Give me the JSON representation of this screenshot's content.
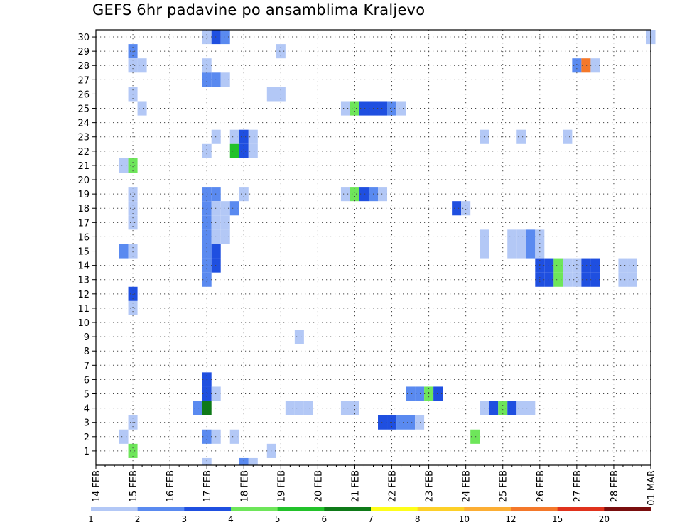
{
  "chart_data": {
    "type": "heatmap",
    "title": "GEFS 6hr padavine po ansamblima Kraljevo",
    "xlabel": "",
    "ylabel": "",
    "x_tick_labels": [
      "14 FEB",
      "15 FEB",
      "16 FEB",
      "17 FEB",
      "18 FEB",
      "19 FEB",
      "20 FEB",
      "21 FEB",
      "22 FEB",
      "23 FEB",
      "24 FEB",
      "25 FEB",
      "26 FEB",
      "27 FEB",
      "28 FEB",
      "01 MAR"
    ],
    "y_tick_labels": [
      "1",
      "2",
      "3",
      "4",
      "5",
      "6",
      "7",
      "8",
      "9",
      "10",
      "11",
      "12",
      "13",
      "14",
      "15",
      "16",
      "17",
      "18",
      "19",
      "20",
      "21",
      "22",
      "23",
      "24",
      "25",
      "26",
      "27",
      "28",
      "29",
      "30"
    ],
    "xlim": [
      "14 FEB 00",
      "01 MAR 00"
    ],
    "ylim": [
      0,
      30
    ],
    "x_step_hours": 6,
    "grid": true,
    "legend": {
      "placement": "bottom",
      "levels": [
        "1",
        "2",
        "3",
        "4",
        "5",
        "6",
        "7",
        "8",
        "10",
        "12",
        "15",
        "20"
      ],
      "colors": [
        "#b3c8f6",
        "#5a8af0",
        "#1f4fe0",
        "#6ee65a",
        "#22c22a",
        "#0e7a18",
        "#fefe1a",
        "#fdd028",
        "#fcae34",
        "#f4782a",
        "#e0321c",
        "#7a0e0e"
      ]
    },
    "cells": [
      {
        "member": 30,
        "time": "17 FEB 00",
        "class": 1
      },
      {
        "member": 30,
        "time": "17 FEB 06",
        "class": 3
      },
      {
        "member": 30,
        "time": "17 FEB 12",
        "class": 2
      },
      {
        "member": 30,
        "time": "01 MAR 00",
        "class": 1
      },
      {
        "member": 29,
        "time": "15 FEB 00",
        "class": 2
      },
      {
        "member": 29,
        "time": "19 FEB 00",
        "class": 1
      },
      {
        "member": 28,
        "time": "15 FEB 00",
        "class": 1
      },
      {
        "member": 28,
        "time": "15 FEB 06",
        "class": 1
      },
      {
        "member": 28,
        "time": "17 FEB 00",
        "class": 1
      },
      {
        "member": 28,
        "time": "27 FEB 00",
        "class": 2
      },
      {
        "member": 28,
        "time": "27 FEB 06",
        "class": 12
      },
      {
        "member": 28,
        "time": "27 FEB 12",
        "class": 1
      },
      {
        "member": 27,
        "time": "17 FEB 00",
        "class": 2
      },
      {
        "member": 27,
        "time": "17 FEB 06",
        "class": 2
      },
      {
        "member": 27,
        "time": "17 FEB 12",
        "class": 1
      },
      {
        "member": 26,
        "time": "15 FEB 00",
        "class": 1
      },
      {
        "member": 26,
        "time": "18 FEB 18",
        "class": 1
      },
      {
        "member": 26,
        "time": "19 FEB 00",
        "class": 1
      },
      {
        "member": 25,
        "time": "15 FEB 06",
        "class": 1
      },
      {
        "member": 25,
        "time": "20 FEB 18",
        "class": 1
      },
      {
        "member": 25,
        "time": "21 FEB 00",
        "class": 4
      },
      {
        "member": 25,
        "time": "21 FEB 06",
        "class": 3
      },
      {
        "member": 25,
        "time": "21 FEB 12",
        "class": 3
      },
      {
        "member": 25,
        "time": "21 FEB 18",
        "class": 3
      },
      {
        "member": 25,
        "time": "22 FEB 00",
        "class": 2
      },
      {
        "member": 25,
        "time": "22 FEB 06",
        "class": 1
      },
      {
        "member": 23,
        "time": "17 FEB 06",
        "class": 1
      },
      {
        "member": 23,
        "time": "17 FEB 18",
        "class": 1
      },
      {
        "member": 23,
        "time": "18 FEB 00",
        "class": 3
      },
      {
        "member": 23,
        "time": "18 FEB 06",
        "class": 1
      },
      {
        "member": 23,
        "time": "24 FEB 12",
        "class": 1
      },
      {
        "member": 23,
        "time": "25 FEB 12",
        "class": 1
      },
      {
        "member": 23,
        "time": "26 FEB 18",
        "class": 1
      },
      {
        "member": 22,
        "time": "17 FEB 00",
        "class": 1
      },
      {
        "member": 22,
        "time": "17 FEB 18",
        "class": 5
      },
      {
        "member": 22,
        "time": "18 FEB 00",
        "class": 3
      },
      {
        "member": 22,
        "time": "18 FEB 06",
        "class": 1
      },
      {
        "member": 21,
        "time": "14 FEB 18",
        "class": 1
      },
      {
        "member": 21,
        "time": "15 FEB 00",
        "class": 4
      },
      {
        "member": 19,
        "time": "15 FEB 00",
        "class": 1
      },
      {
        "member": 19,
        "time": "17 FEB 00",
        "class": 2
      },
      {
        "member": 19,
        "time": "17 FEB 06",
        "class": 2
      },
      {
        "member": 19,
        "time": "18 FEB 00",
        "class": 1
      },
      {
        "member": 19,
        "time": "20 FEB 18",
        "class": 1
      },
      {
        "member": 19,
        "time": "21 FEB 00",
        "class": 4
      },
      {
        "member": 19,
        "time": "21 FEB 06",
        "class": 3
      },
      {
        "member": 19,
        "time": "21 FEB 12",
        "class": 2
      },
      {
        "member": 19,
        "time": "21 FEB 18",
        "class": 1
      },
      {
        "member": 18,
        "time": "15 FEB 00",
        "class": 1
      },
      {
        "member": 18,
        "time": "17 FEB 00",
        "class": 2
      },
      {
        "member": 18,
        "time": "17 FEB 06",
        "class": 1
      },
      {
        "member": 18,
        "time": "17 FEB 12",
        "class": 1
      },
      {
        "member": 18,
        "time": "17 FEB 18",
        "class": 2
      },
      {
        "member": 18,
        "time": "23 FEB 18",
        "class": 3
      },
      {
        "member": 18,
        "time": "24 FEB 00",
        "class": 1
      },
      {
        "member": 17,
        "time": "15 FEB 00",
        "class": 1
      },
      {
        "member": 17,
        "time": "17 FEB 00",
        "class": 2
      },
      {
        "member": 17,
        "time": "17 FEB 06",
        "class": 1
      },
      {
        "member": 17,
        "time": "17 FEB 12",
        "class": 1
      },
      {
        "member": 16,
        "time": "17 FEB 00",
        "class": 2
      },
      {
        "member": 16,
        "time": "17 FEB 06",
        "class": 1
      },
      {
        "member": 16,
        "time": "17 FEB 12",
        "class": 1
      },
      {
        "member": 16,
        "time": "24 FEB 12",
        "class": 1
      },
      {
        "member": 16,
        "time": "25 FEB 06",
        "class": 1
      },
      {
        "member": 16,
        "time": "25 FEB 12",
        "class": 1
      },
      {
        "member": 16,
        "time": "25 FEB 18",
        "class": 2
      },
      {
        "member": 16,
        "time": "26 FEB 00",
        "class": 1
      },
      {
        "member": 15,
        "time": "14 FEB 18",
        "class": 2
      },
      {
        "member": 15,
        "time": "15 FEB 00",
        "class": 1
      },
      {
        "member": 15,
        "time": "17 FEB 00",
        "class": 2
      },
      {
        "member": 15,
        "time": "17 FEB 06",
        "class": 3
      },
      {
        "member": 15,
        "time": "24 FEB 12",
        "class": 1
      },
      {
        "member": 15,
        "time": "25 FEB 06",
        "class": 1
      },
      {
        "member": 15,
        "time": "25 FEB 12",
        "class": 1
      },
      {
        "member": 15,
        "time": "25 FEB 18",
        "class": 2
      },
      {
        "member": 15,
        "time": "26 FEB 00",
        "class": 1
      },
      {
        "member": 14,
        "time": "17 FEB 00",
        "class": 2
      },
      {
        "member": 14,
        "time": "17 FEB 06",
        "class": 3
      },
      {
        "member": 14,
        "time": "26 FEB 00",
        "class": 3
      },
      {
        "member": 14,
        "time": "26 FEB 06",
        "class": 3
      },
      {
        "member": 14,
        "time": "26 FEB 12",
        "class": 4
      },
      {
        "member": 14,
        "time": "26 FEB 18",
        "class": 1
      },
      {
        "member": 14,
        "time": "27 FEB 00",
        "class": 1
      },
      {
        "member": 14,
        "time": "27 FEB 06",
        "class": 3
      },
      {
        "member": 14,
        "time": "27 FEB 12",
        "class": 3
      },
      {
        "member": 14,
        "time": "28 FEB 06",
        "class": 1
      },
      {
        "member": 14,
        "time": "28 FEB 12",
        "class": 1
      },
      {
        "member": 13,
        "time": "17 FEB 00",
        "class": 2
      },
      {
        "member": 13,
        "time": "26 FEB 00",
        "class": 3
      },
      {
        "member": 13,
        "time": "26 FEB 06",
        "class": 3
      },
      {
        "member": 13,
        "time": "26 FEB 12",
        "class": 4
      },
      {
        "member": 13,
        "time": "26 FEB 18",
        "class": 1
      },
      {
        "member": 13,
        "time": "27 FEB 00",
        "class": 1
      },
      {
        "member": 13,
        "time": "27 FEB 06",
        "class": 3
      },
      {
        "member": 13,
        "time": "27 FEB 12",
        "class": 3
      },
      {
        "member": 13,
        "time": "28 FEB 06",
        "class": 1
      },
      {
        "member": 13,
        "time": "28 FEB 12",
        "class": 1
      },
      {
        "member": 12,
        "time": "15 FEB 00",
        "class": 3
      },
      {
        "member": 11,
        "time": "15 FEB 00",
        "class": 1
      },
      {
        "member": 9,
        "time": "19 FEB 12",
        "class": 1
      },
      {
        "member": 6,
        "time": "17 FEB 00",
        "class": 3
      },
      {
        "member": 5,
        "time": "17 FEB 00",
        "class": 3
      },
      {
        "member": 5,
        "time": "17 FEB 06",
        "class": 1
      },
      {
        "member": 5,
        "time": "22 FEB 12",
        "class": 2
      },
      {
        "member": 5,
        "time": "22 FEB 18",
        "class": 2
      },
      {
        "member": 5,
        "time": "23 FEB 00",
        "class": 4
      },
      {
        "member": 5,
        "time": "23 FEB 06",
        "class": 3
      },
      {
        "member": 4,
        "time": "16 FEB 18",
        "class": 2
      },
      {
        "member": 4,
        "time": "17 FEB 00",
        "class": 6
      },
      {
        "member": 4,
        "time": "19 FEB 06",
        "class": 1
      },
      {
        "member": 4,
        "time": "19 FEB 12",
        "class": 1
      },
      {
        "member": 4,
        "time": "19 FEB 18",
        "class": 1
      },
      {
        "member": 4,
        "time": "20 FEB 18",
        "class": 1
      },
      {
        "member": 4,
        "time": "21 FEB 00",
        "class": 1
      },
      {
        "member": 4,
        "time": "24 FEB 12",
        "class": 1
      },
      {
        "member": 4,
        "time": "24 FEB 18",
        "class": 3
      },
      {
        "member": 4,
        "time": "25 FEB 00",
        "class": 4
      },
      {
        "member": 4,
        "time": "25 FEB 06",
        "class": 3
      },
      {
        "member": 4,
        "time": "25 FEB 12",
        "class": 1
      },
      {
        "member": 4,
        "time": "25 FEB 18",
        "class": 1
      },
      {
        "member": 3,
        "time": "15 FEB 00",
        "class": 1
      },
      {
        "member": 3,
        "time": "21 FEB 18",
        "class": 3
      },
      {
        "member": 3,
        "time": "22 FEB 00",
        "class": 3
      },
      {
        "member": 3,
        "time": "22 FEB 06",
        "class": 2
      },
      {
        "member": 3,
        "time": "22 FEB 12",
        "class": 2
      },
      {
        "member": 3,
        "time": "22 FEB 18",
        "class": 1
      },
      {
        "member": 2,
        "time": "14 FEB 18",
        "class": 1
      },
      {
        "member": 2,
        "time": "17 FEB 00",
        "class": 2
      },
      {
        "member": 2,
        "time": "17 FEB 06",
        "class": 1
      },
      {
        "member": 2,
        "time": "17 FEB 18",
        "class": 1
      },
      {
        "member": 2,
        "time": "24 FEB 06",
        "class": 4
      },
      {
        "member": 1,
        "time": "15 FEB 00",
        "class": 4
      },
      {
        "member": 1,
        "time": "18 FEB 18",
        "class": 1
      },
      {
        "member": 0,
        "time": "17 FEB 00",
        "class": 1
      },
      {
        "member": 0,
        "time": "18 FEB 00",
        "class": 2
      },
      {
        "member": 0,
        "time": "18 FEB 06",
        "class": 1
      }
    ]
  }
}
